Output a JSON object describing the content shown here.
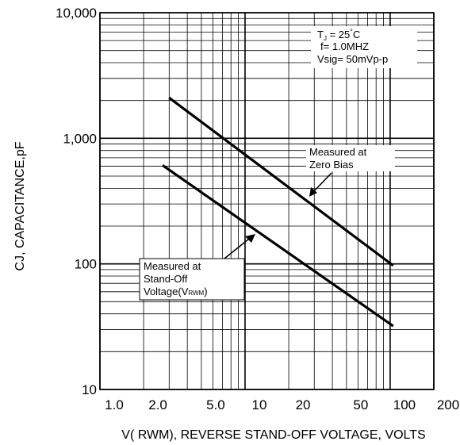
{
  "chart_data": {
    "type": "line",
    "xlabel": "V( RWM), REVERSE STAND-OFF VOLTAGE, VOLTS",
    "ylabel": "CJ, CAPACITANCE,pF",
    "x_scale": "log",
    "y_scale": "log",
    "xlim": [
      1.0,
      200
    ],
    "ylim": [
      10,
      10000
    ],
    "grid": true,
    "x_ticks": [
      {
        "value": 1,
        "label": "1.0"
      },
      {
        "value": 2,
        "label": "2.0"
      },
      {
        "value": 5,
        "label": "5.0"
      },
      {
        "value": 10,
        "label": "10"
      },
      {
        "value": 20,
        "label": "20"
      },
      {
        "value": 50,
        "label": "50"
      },
      {
        "value": 100,
        "label": "100"
      },
      {
        "value": 200,
        "label": "200"
      }
    ],
    "y_ticks": [
      {
        "value": 10,
        "label": "10"
      },
      {
        "value": 100,
        "label": "100"
      },
      {
        "value": 1000,
        "label": "1,000"
      },
      {
        "value": 10000,
        "label": "10,000"
      }
    ],
    "series": [
      {
        "name": "Measured at Zero Bias",
        "x": [
          3.0,
          105
        ],
        "y": [
          2100,
          97
        ]
      },
      {
        "name": "Measured at Stand-Off Voltage(VRWM)",
        "x": [
          2.7,
          105
        ],
        "y": [
          610,
          32
        ]
      }
    ],
    "conditions": {
      "tj": "T",
      "tj_sub": "J",
      "tj_value": " = 25",
      "tj_unit": "C",
      "tj_deg": "°",
      "freq": "f= 1.0MHZ",
      "vsig": "Vsig= 50mVp-p"
    },
    "annotations": {
      "zero_bias_line1": "Measured at",
      "zero_bias_line2": "Zero Bias",
      "standoff_line1": "Measured at",
      "standoff_line2": "Stand-Off",
      "standoff_line3_prefix": "Voltage(V",
      "standoff_line3_sub": "RWM",
      "standoff_line3_suffix": ")"
    }
  }
}
